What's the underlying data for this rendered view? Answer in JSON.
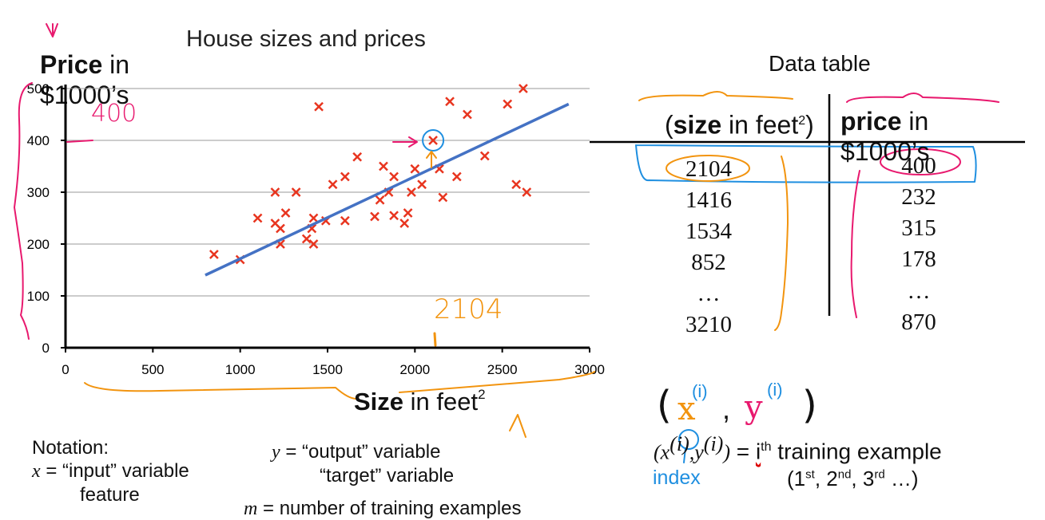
{
  "chart_title": "House sizes and prices",
  "y_label": {
    "bold": "Price",
    "rest": " in $1000’s"
  },
  "x_label": {
    "bold": "Size",
    "rest": " in feet",
    "sup": "2"
  },
  "colors": {
    "points": "#e8351f",
    "fit_line": "#4472c4",
    "pink_ink": "#e8196e",
    "orange_ink": "#f2940f",
    "blue_ink": "#1f8fe0"
  },
  "chart_data": {
    "type": "scatter",
    "title": "House sizes and prices",
    "xlabel": "Size in feet2",
    "ylabel": "Price in $1000’s",
    "xlim": [
      0,
      3000
    ],
    "ylim": [
      0,
      500
    ],
    "xticks": [
      "0",
      "500",
      "1000",
      "1500",
      "2000",
      "2500",
      "3000"
    ],
    "yticks": [
      "0",
      "100",
      "200",
      "300",
      "400",
      "500"
    ],
    "grid": true,
    "series": [
      {
        "marker": "x",
        "points": [
          [
            850,
            180
          ],
          [
            1000,
            170
          ],
          [
            1100,
            250
          ],
          [
            1200,
            240
          ],
          [
            1200,
            300
          ],
          [
            1230,
            230
          ],
          [
            1230,
            200
          ],
          [
            1260,
            260
          ],
          [
            1320,
            300
          ],
          [
            1380,
            210
          ],
          [
            1410,
            230
          ],
          [
            1420,
            250
          ],
          [
            1420,
            200
          ],
          [
            1450,
            465
          ],
          [
            1490,
            245
          ],
          [
            1530,
            315
          ],
          [
            1600,
            330
          ],
          [
            1600,
            245
          ],
          [
            1670,
            368
          ],
          [
            1770,
            253
          ],
          [
            1800,
            285
          ],
          [
            1820,
            350
          ],
          [
            1850,
            300
          ],
          [
            1880,
            330
          ],
          [
            1880,
            255
          ],
          [
            1940,
            240
          ],
          [
            1960,
            260
          ],
          [
            1980,
            300
          ],
          [
            2000,
            345
          ],
          [
            2040,
            315
          ],
          [
            2104,
            400
          ],
          [
            2140,
            345
          ],
          [
            2160,
            290
          ],
          [
            2200,
            475
          ],
          [
            2240,
            330
          ],
          [
            2300,
            450
          ],
          [
            2400,
            370
          ],
          [
            2530,
            470
          ],
          [
            2580,
            315
          ],
          [
            2620,
            500
          ],
          [
            2640,
            300
          ]
        ]
      },
      {
        "name": "",
        "kind": "fit-line",
        "points": [
          [
            800,
            140
          ],
          [
            2880,
            470
          ]
        ]
      }
    ]
  },
  "annotations": {
    "price_note": "400",
    "size_note": "2104"
  },
  "data_table": {
    "title": "Data table",
    "headers": [
      {
        "bold": "size",
        "rest": " in feet",
        "sup": "2",
        "prefix": "(",
        "suffix": ")"
      },
      {
        "bold": "price",
        "rest": " in $1000’s",
        "prefix": "",
        "suffix": ""
      }
    ],
    "sizes": [
      "2104",
      "1416",
      "1534",
      "852",
      "…",
      "3210"
    ],
    "prices": [
      "400",
      "232",
      "315",
      "178",
      "…",
      "870"
    ]
  },
  "notation": {
    "title": "Notation:",
    "x_var": "x",
    "x_def": " = “input” variable",
    "x_def2": "feature",
    "y_var": "y",
    "y_def": " = “output” variable",
    "y_def2": "“target” variable",
    "m_var": "m",
    "m_def": " = number of training examples"
  },
  "pair_def": {
    "open": "(x",
    "sup1": "(i)",
    "mid": ",y",
    "sup2": "(i)",
    "close": ")",
    "eq": " = ",
    "i": "i",
    "th": "th",
    "text": " training example",
    "index_label": "index",
    "ordinals": [
      "1",
      "st",
      ", 2",
      "nd",
      ", 3",
      "rd",
      " …)"
    ],
    "ordinal_open": "("
  },
  "handwritten": {
    "x": "x",
    "sup": "(i)",
    "comma": ",",
    "y": "y"
  }
}
